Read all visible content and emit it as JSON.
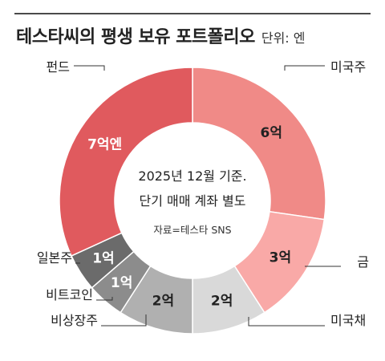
{
  "header": {
    "title": "테스타씨의 평생 보유 포트폴리오",
    "unit": "단위: 엔"
  },
  "center": {
    "line1": "2025년 12월 기준.",
    "line2": "단기 매매 계좌 별도",
    "source": "자료=테스타 SNS"
  },
  "chart_data": {
    "type": "pie",
    "donut": true,
    "title": "테스타씨의 평생 보유 포트폴리오",
    "unit": "단위: 엔",
    "slices": [
      {
        "label": "미국주",
        "value": 6,
        "value_label": "6억",
        "color": "#f08a87"
      },
      {
        "label": "금",
        "value": 3,
        "value_label": "3억",
        "color": "#f9a9a7"
      },
      {
        "label": "미국채",
        "value": 2,
        "value_label": "2억",
        "color": "#d9d9d9"
      },
      {
        "label": "비상장주",
        "value": 2,
        "value_label": "2억",
        "color": "#b0b0b0"
      },
      {
        "label": "비트코인",
        "value": 1,
        "value_label": "1억",
        "color": "#8c8c8c"
      },
      {
        "label": "일본주",
        "value": 1,
        "value_label": "1억",
        "color": "#6b6b6b"
      },
      {
        "label": "펀드",
        "value": 7,
        "value_label": "7억엔",
        "color": "#e05a5e"
      }
    ]
  }
}
